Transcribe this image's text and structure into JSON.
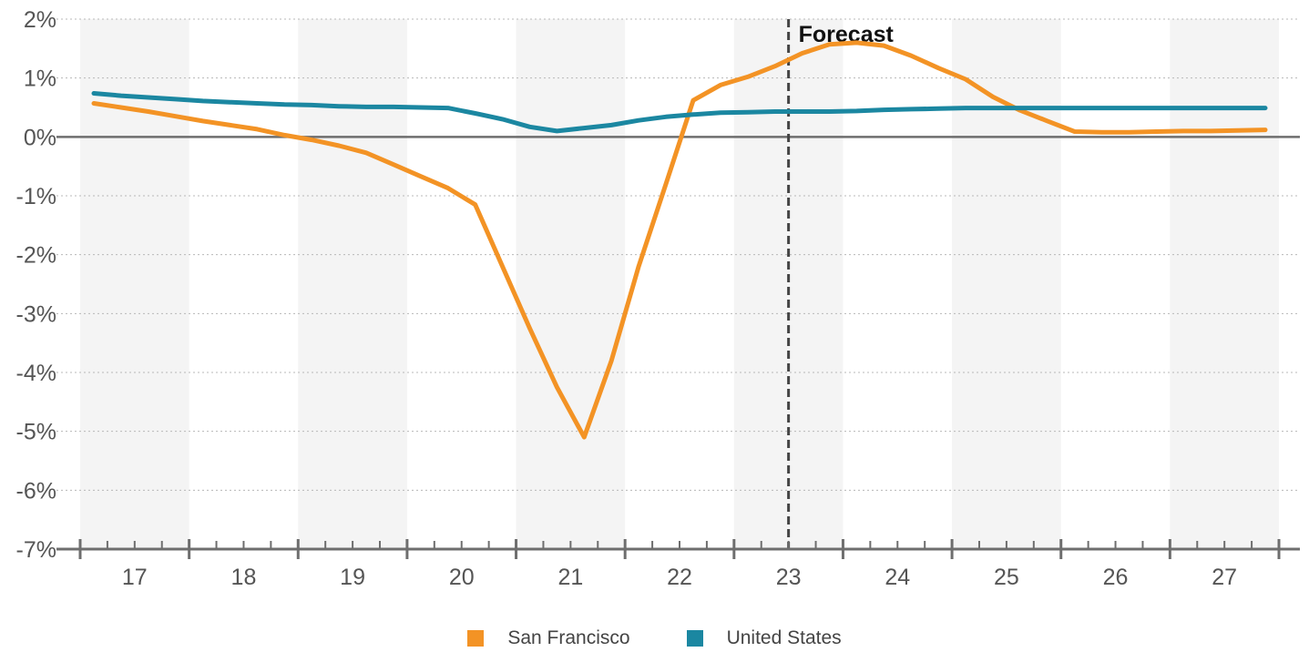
{
  "chart_data": {
    "type": "line",
    "title": "",
    "xlabel": "",
    "ylabel": "",
    "ylim": [
      -7,
      2
    ],
    "y_ticks": [
      2,
      1,
      0,
      -1,
      -2,
      -3,
      -4,
      -5,
      -6,
      -7
    ],
    "y_tick_labels": [
      "2%",
      "1%",
      "0%",
      "-1%",
      "-2%",
      "-3%",
      "-4%",
      "-5%",
      "-6%",
      "-7%"
    ],
    "xlim": [
      2016.5,
      2027.5
    ],
    "year_values": [
      2017,
      2018,
      2019,
      2020,
      2021,
      2022,
      2023,
      2024,
      2025,
      2026,
      2027
    ],
    "x_tick_labels": [
      "17",
      "18",
      "19",
      "20",
      "21",
      "22",
      "23",
      "24",
      "25",
      "26",
      "27"
    ],
    "grid": "horizontal dotted",
    "alternating_year_shading": true,
    "forecast_start": 2023,
    "annotation": "Forecast",
    "legend_position": "bottom-center",
    "series": [
      {
        "name": "San Francisco",
        "color": "#F39325",
        "x": [
          2016.625,
          2016.875,
          2017.125,
          2017.375,
          2017.625,
          2017.875,
          2018.125,
          2018.375,
          2018.625,
          2018.875,
          2019.125,
          2019.375,
          2019.625,
          2019.875,
          2020.125,
          2020.375,
          2020.625,
          2020.875,
          2021.125,
          2021.375,
          2021.625,
          2021.875,
          2022.125,
          2022.375,
          2022.625,
          2022.875,
          2023.125,
          2023.375,
          2023.625,
          2023.875,
          2024.125,
          2024.375,
          2024.625,
          2024.875,
          2025.125,
          2025.375,
          2025.625,
          2025.875,
          2026.125,
          2026.375,
          2026.625,
          2026.875,
          2027.125,
          2027.375
        ],
        "y": [
          0.57,
          0.5,
          0.43,
          0.35,
          0.27,
          0.2,
          0.13,
          0.03,
          -0.05,
          -0.15,
          -0.27,
          -0.47,
          -0.67,
          -0.87,
          -1.15,
          -2.2,
          -3.25,
          -4.25,
          -5.1,
          -3.8,
          -2.2,
          -0.8,
          0.62,
          0.88,
          1.02,
          1.2,
          1.42,
          1.57,
          1.6,
          1.55,
          1.38,
          1.17,
          0.98,
          0.68,
          0.45,
          0.27,
          0.09,
          0.08,
          0.08,
          0.09,
          0.1,
          0.1,
          0.11,
          0.12
        ]
      },
      {
        "name": "United States",
        "color": "#1B87A1",
        "x": [
          2016.625,
          2016.875,
          2017.125,
          2017.375,
          2017.625,
          2017.875,
          2018.125,
          2018.375,
          2018.625,
          2018.875,
          2019.125,
          2019.375,
          2019.625,
          2019.875,
          2020.125,
          2020.375,
          2020.625,
          2020.875,
          2021.125,
          2021.375,
          2021.625,
          2021.875,
          2022.125,
          2022.375,
          2022.625,
          2022.875,
          2023.125,
          2023.375,
          2023.625,
          2023.875,
          2024.125,
          2024.375,
          2024.625,
          2024.875,
          2025.125,
          2025.375,
          2025.625,
          2025.875,
          2026.125,
          2026.375,
          2026.625,
          2026.875,
          2027.125,
          2027.375
        ],
        "y": [
          0.74,
          0.7,
          0.67,
          0.64,
          0.61,
          0.59,
          0.57,
          0.55,
          0.54,
          0.52,
          0.51,
          0.51,
          0.5,
          0.49,
          0.4,
          0.3,
          0.17,
          0.1,
          0.15,
          0.2,
          0.28,
          0.34,
          0.38,
          0.41,
          0.42,
          0.43,
          0.43,
          0.43,
          0.44,
          0.46,
          0.47,
          0.48,
          0.49,
          0.49,
          0.49,
          0.49,
          0.49,
          0.49,
          0.49,
          0.49,
          0.49,
          0.49,
          0.49,
          0.49
        ]
      }
    ]
  }
}
